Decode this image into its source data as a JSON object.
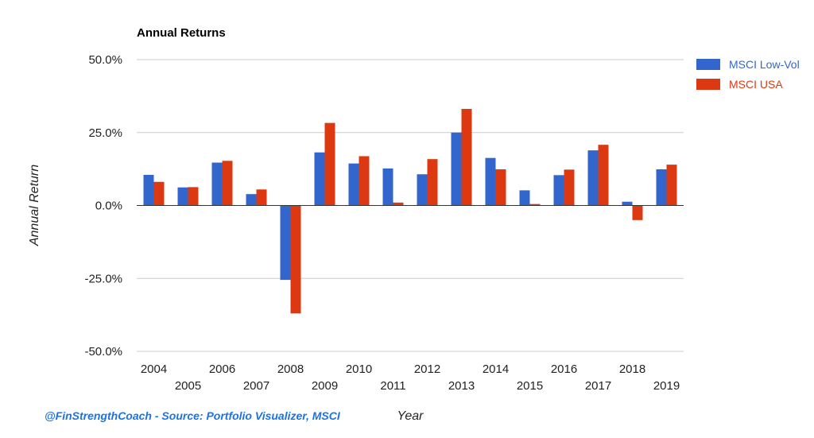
{
  "chart_data": {
    "type": "bar",
    "title": "Annual Returns",
    "xlabel": "Year",
    "ylabel": "Annual Return",
    "ylim": [
      -50,
      50
    ],
    "yticks": [
      50,
      25,
      0,
      -25,
      -50
    ],
    "ytick_labels": [
      "50.0%",
      "25.0%",
      "0.0%",
      "-25.0%",
      "-50.0%"
    ],
    "grid": true,
    "legend_position": "top-right",
    "categories": [
      "2004",
      "2005",
      "2006",
      "2007",
      "2008",
      "2009",
      "2010",
      "2011",
      "2012",
      "2013",
      "2014",
      "2015",
      "2016",
      "2017",
      "2018",
      "2019"
    ],
    "series": [
      {
        "name": "MSCI Low-Vol",
        "color": "#3366cc",
        "values": [
          10.5,
          6.2,
          14.7,
          3.9,
          -25.5,
          18.2,
          14.4,
          12.7,
          10.7,
          25.0,
          16.3,
          5.2,
          10.4,
          18.9,
          1.3,
          12.4
        ]
      },
      {
        "name": "MSCI USA",
        "color": "#dc3912",
        "values": [
          8.1,
          6.3,
          15.3,
          5.5,
          -37.0,
          28.3,
          16.9,
          1.0,
          15.9,
          33.1,
          12.4,
          0.5,
          12.3,
          20.8,
          -5.0,
          14.0
        ]
      }
    ]
  },
  "credit": {
    "text": "@FinStrengthCoach - Source: Portfolio Visualizer, MSCI",
    "color": "#1a73e8"
  }
}
